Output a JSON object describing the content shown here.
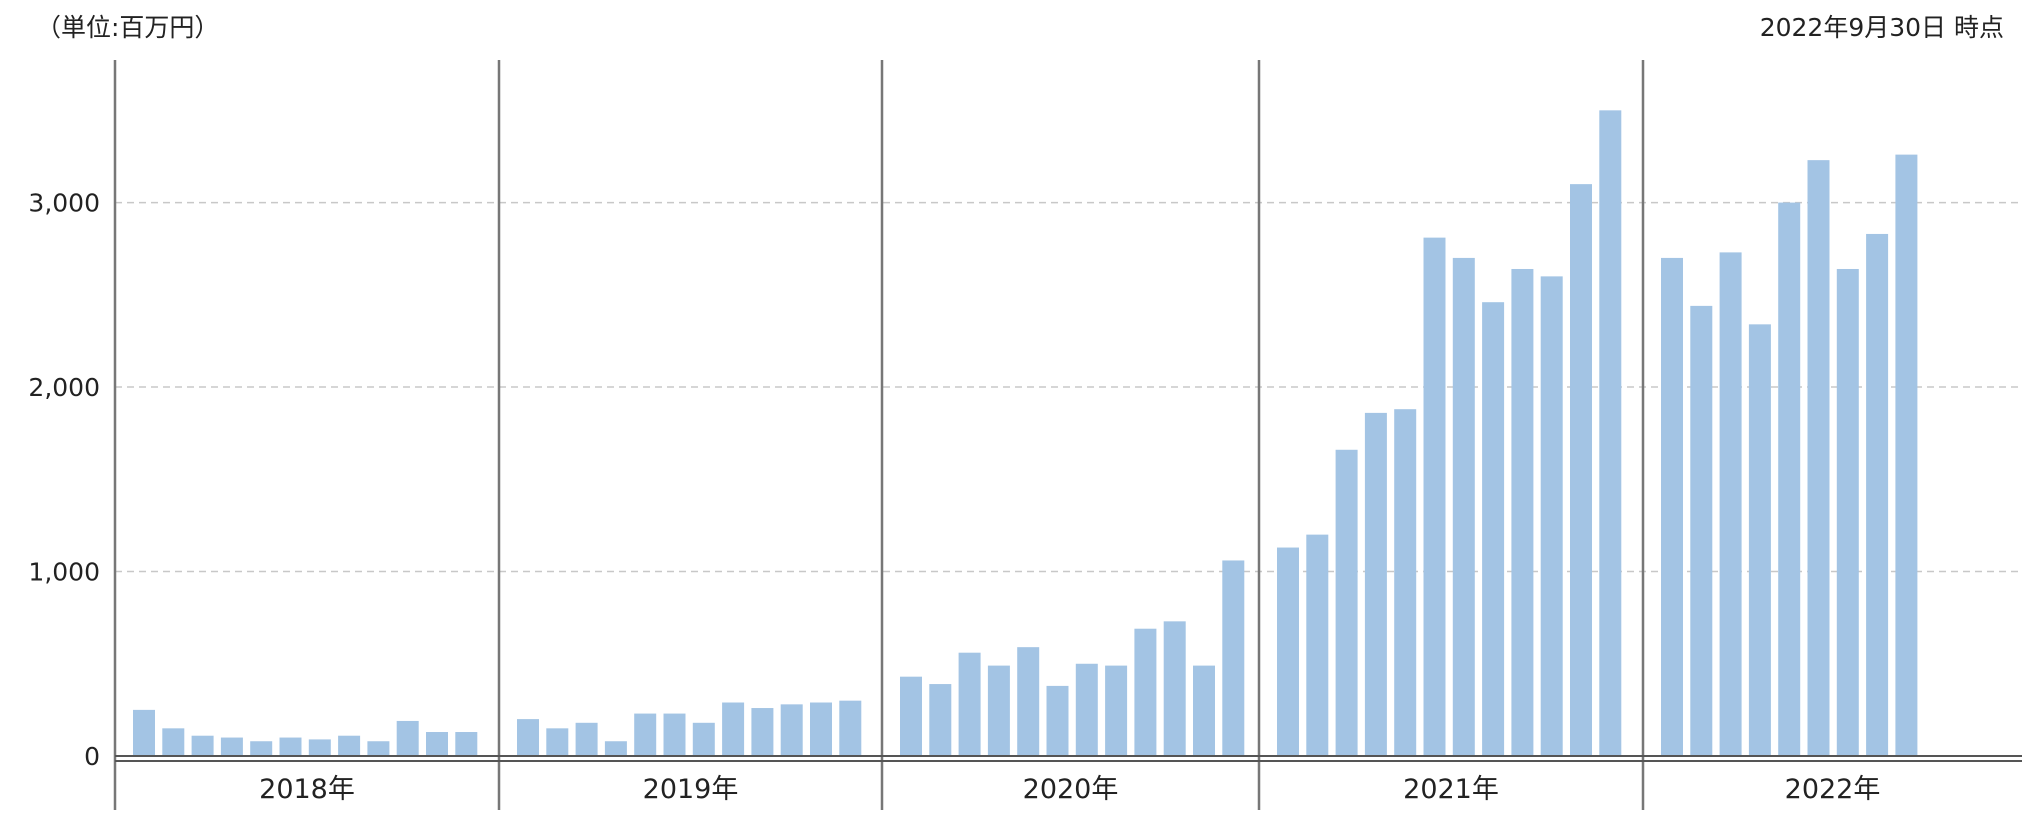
{
  "header": {
    "unit_label": "（単位:百万円）",
    "as_of_label": "2022年9月30日 時点"
  },
  "colors": {
    "bar": "#a3c4e4",
    "grid": "#c8c8c8",
    "axis": "#555555",
    "separator": "#777777"
  },
  "chart_data": {
    "type": "bar",
    "title": "",
    "xlabel": "",
    "ylabel": "",
    "ylim": [
      0,
      3800
    ],
    "yticks": [
      {
        "value": 0,
        "label": "0"
      },
      {
        "value": 1000,
        "label": "1,000"
      },
      {
        "value": 2000,
        "label": "2,000"
      },
      {
        "value": 3000,
        "label": "3,000"
      }
    ],
    "grid": true,
    "groups": [
      {
        "label": "2018年",
        "values": [
          250,
          150,
          110,
          100,
          80,
          100,
          90,
          110,
          80,
          190,
          130,
          130
        ]
      },
      {
        "label": "2019年",
        "values": [
          200,
          150,
          180,
          80,
          230,
          230,
          180,
          290,
          260,
          280,
          290,
          300
        ]
      },
      {
        "label": "2020年",
        "values": [
          430,
          390,
          560,
          490,
          590,
          380,
          500,
          490,
          690,
          730,
          490,
          1060
        ]
      },
      {
        "label": "2021年",
        "values": [
          1130,
          1200,
          1660,
          1860,
          1880,
          2810,
          2700,
          2460,
          2640,
          2600,
          3100,
          3500
        ]
      },
      {
        "label": "2022年",
        "values": [
          2700,
          2440,
          2730,
          2340,
          3000,
          3230,
          2640,
          2830,
          3260
        ]
      }
    ]
  }
}
